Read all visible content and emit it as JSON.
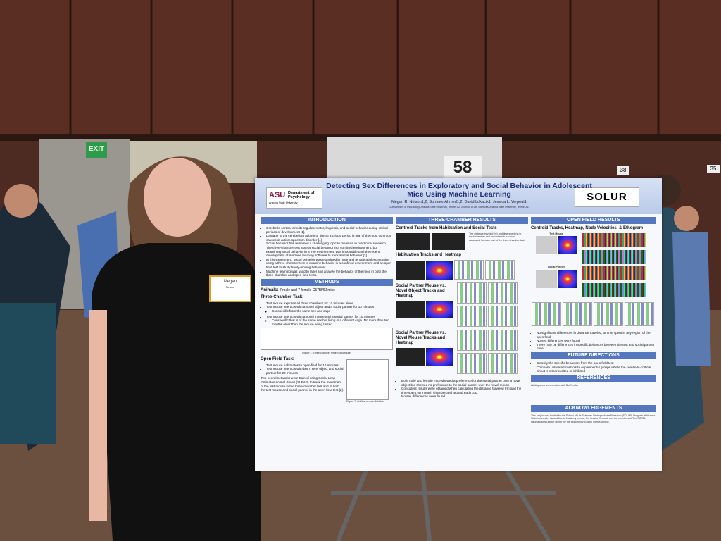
{
  "signs": {
    "exit": "EXIT",
    "board_number": "58",
    "stand_left": "38",
    "stand_right": "35"
  },
  "name_badge": {
    "first": "Megan",
    "last": "Nelson"
  },
  "poster": {
    "logo_left": {
      "mark": "ASU",
      "department": "Department of Psychology",
      "university": "Arizona State University"
    },
    "logo_right": "SOLUR",
    "title": "Detecting Sex Differences in Exploratory and Social Behavior in Adolescent Mice Using Machine Learning",
    "authors": "Megan R. Nelson1,2, Summer Ahmed1,2, David Lukacik1, Jessica L. Verpeut1",
    "affiliations": "1Department of Psychology, Arizona State University, Tempe, AZ; 2School of Life Sciences, Arizona State University, Tempe, AZ",
    "introduction": {
      "heading": "INTRODUCTION",
      "items": [
        "Cerebello-cortical circuits regulate motor, linguistic, and social behavior during critical periods of development [1].",
        "Damage to the cerebellum at birth or during a critical period is one of the most common causes of autism spectrum disorder [4].",
        "Social behavior has remained a challenging topic to measure in preclinical research. The three-chamber test assess social behavior in a confined environment, but examining social behavior in a free environment was impossible until the recent development of machine learning software to track animal behavior [3].",
        "In this experiment, social behavior was examined in male and female adolescent mice using a three-chamber test to examine behavior in a confined environment and an open field test to study freely-moving behaviors.",
        "Machine learning was used to label and analyze the behavior of the mice in both the three-chamber and open field tests."
      ]
    },
    "methods": {
      "heading": "METHODS",
      "animals_label": "Animals:",
      "animals": "7 male and 7 female C57Bl/6J mice",
      "three_chamber_title": "Three-Chamber Task:",
      "three_chamber_items": [
        "Test mouse explores all three chambers for 10 minutes alone",
        "Test mouse interacts with a novel object and a social partner for 10 minutes",
        [
          "Conspecific from the same sex and cage"
        ],
        "Test mouse interacts with a novel mouse and a social partner for 10 minutes",
        [
          "Conspecific that is of the same sex but living in a different cage. No more than two months older than the mouse being tested."
        ]
      ],
      "figure1": "Figure 1: Three-chamber testing procedure.",
      "open_field_title": "Open Field Task:",
      "open_field_items": [
        "Test mouse habituates to open field for 10 minutes",
        "Test mouse interacts with both novel object and social partner for 20 minutes"
      ],
      "sleap": "Two neural networks were trained using Social Leap Estimates Animal Poses (SLEAP) to track the movement of the test mouse in the three-chamber test and of both the test mouse and social partner in the open field test [2].",
      "figure2": "Figure 2: Outline of open field test."
    },
    "three_chamber_results": {
      "heading": "THREE-CHAMBER RESULTS",
      "centroid_title": "Centroid Tracks from Habituation and Social Tests",
      "centroid_caption": "The distance traveled (m) and time spent (s) in each chamber and around each cup was calculated for each part of the three-chamber test.",
      "habituation_title": "Habituation Tracks and Heatmap",
      "object_title": "Social Partner Mouse vs. Novel Object Tracks and Heatmap",
      "novel_mouse_title": "Social Partner Mouse vs. Novel Mouse Tracks and Heatmap",
      "items": [
        "Both male and female mice showed a preference for the social partner over a novel object but showed no preference to the social partner over the novel mouse.",
        "Consistent results were obtained when calculating the distance traveled (m) and the time spent (s) in each chamber and around each cup.",
        "No sex differences were found"
      ]
    },
    "open_field_results": {
      "heading": "OPEN FIELD RESULTS",
      "title": "Centroid Tracks, Heatmap, Node Velocities, & Ethogram",
      "test_mouse": "Test Mouse",
      "social_partner": "Social Partner",
      "items": [
        "No significant differences in distance traveled, or time spent in any region of the open field",
        "No sex differences were found",
        "There may be differences in specific behaviors between the test and social partner mice"
      ]
    },
    "future_directions": {
      "heading": "FUTURE DIRECTIONS",
      "items": [
        "Classify the specific behaviors from the open field test",
        "Compare untreated controls to experimental groups where the cerebello-cortical circuit is either excited or inhibited"
      ]
    },
    "references": {
      "heading": "REFERENCES",
      "note": "All diagrams were created with BioRender"
    },
    "acknowledgements": {
      "heading": "ACKNOWLEDGEMENTS",
      "text": "This project was funded by the School of Life Sciences Undergraduate Research (SOLUR) Program at Arizona State University. I would like to thank my mentor, Dr. Jessica Verpeut, and the members of The SCCBL Neurobiology Lab for giving me the opportunity to work on this project."
    }
  }
}
